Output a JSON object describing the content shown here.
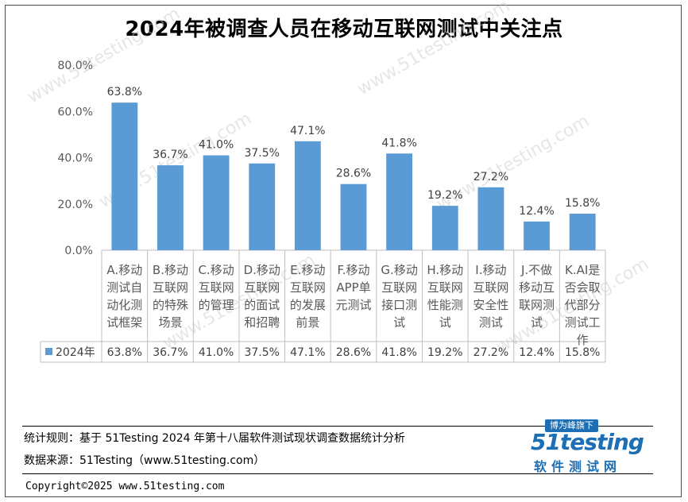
{
  "title": "2024年被调查人员在移动互联网测试中关注点",
  "chart_data": {
    "type": "bar",
    "title": "2024年被调查人员在移动互联网测试中关注点",
    "categories": [
      "A.移动测试自动化测试框架",
      "B.移动互联网的特殊场景",
      "C.移动互联网的管理",
      "D.移动互联网的面试和招聘",
      "E.移动互联网的发展前景",
      "F.移动APP单元测试",
      "G.移动互联网接口测试",
      "H.移动互联网性能测试",
      "I.移动互联网安全性测试",
      "J.不做移动互联网测试",
      "K.AI是否会取代部分测试工作"
    ],
    "category_lines": [
      [
        "A.移动",
        "测试自",
        "动化测",
        "试框架"
      ],
      [
        "B.移动",
        "互联网",
        "的特殊",
        "场景"
      ],
      [
        "C.移动",
        "互联网",
        "的管理"
      ],
      [
        "D.移动",
        "互联网",
        "的面试",
        "和招聘"
      ],
      [
        "E.移动",
        "互联网",
        "的发展",
        "前景"
      ],
      [
        "F.移动",
        "APP单",
        "元测试"
      ],
      [
        "G.移动",
        "互联网",
        "接口测",
        "试"
      ],
      [
        "H.移动",
        "互联网",
        "性能测",
        "试"
      ],
      [
        "I.移动",
        "互联网",
        "安全性",
        "测试"
      ],
      [
        "J.不做",
        "移动互",
        "联网测",
        "试"
      ],
      [
        "K.AI是",
        "否会取",
        "代部分",
        "测试工",
        "作"
      ]
    ],
    "series": [
      {
        "name": "2024年",
        "values": [
          63.8,
          36.7,
          41.0,
          37.5,
          47.1,
          28.6,
          41.8,
          19.2,
          27.2,
          12.4,
          15.8
        ],
        "color": "#5b9bd5"
      }
    ],
    "value_labels": [
      "63.8%",
      "36.7%",
      "41.0%",
      "37.5%",
      "47.1%",
      "28.6%",
      "41.8%",
      "19.2%",
      "27.2%",
      "12.4%",
      "15.8%"
    ],
    "ylim": [
      0,
      80
    ],
    "yticks": [
      "0.0%",
      "20.0%",
      "40.0%",
      "60.0%",
      "80.0%"
    ],
    "xlabel": "",
    "ylabel": "",
    "grid": false,
    "legend": "data-table",
    "watermark": "www.51testing.com"
  },
  "footer": {
    "rule": "统计规则：基于 51Testing 2024 年第十八届软件测试现状调查数据统计分析",
    "source": "数据来源：51Testing（www.51testing.com）",
    "copyright": "Copyright©2025 www.51testing.com"
  },
  "logo": {
    "badge": "博为峰旗下",
    "brand": "51testing",
    "subtitle": "软件测试网"
  }
}
